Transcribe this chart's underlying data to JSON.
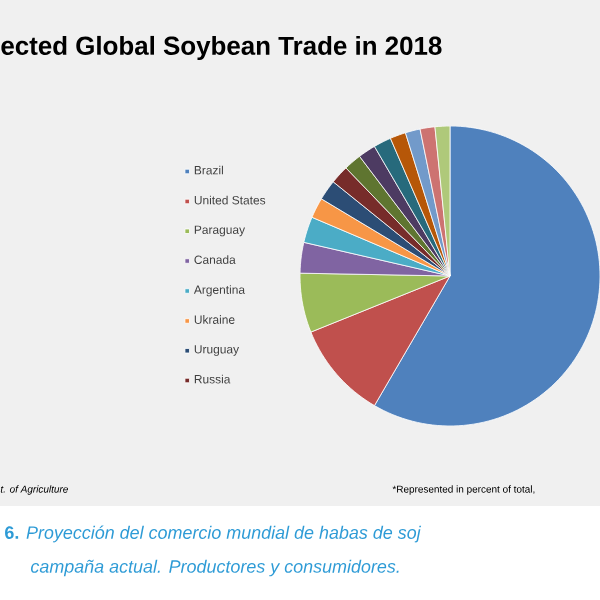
{
  "chart_data": {
    "type": "pie",
    "title": "ected Global Soybean Trade in 2018",
    "categories": [
      "Brazil",
      "United States",
      "Paraguay",
      "Canada",
      "Argentina",
      "Ukraine",
      "Uruguay",
      "Russia",
      null,
      null,
      null,
      null,
      null,
      null,
      null
    ],
    "values": [
      58.4,
      10.5,
      6.4,
      3.3,
      2.8,
      2.2,
      2.2,
      2.0,
      1.9,
      1.9,
      1.9,
      1.7,
      1.6,
      1.6,
      1.6
    ],
    "colors": [
      "#4f81bd",
      "#c0504d",
      "#9bbb59",
      "#8064a2",
      "#4bacc6",
      "#f79646",
      "#2c4d75",
      "#772c2a",
      "#5f7530",
      "#4d3b62",
      "#276a7c",
      "#b65708",
      "#729aca",
      "#cd7371",
      "#afc97a"
    ],
    "legend": "left",
    "annotations": [
      "t. of Agriculture",
      "*Represented in percent of total,",
      "**6.** *Proyección del comercio mundial de habas de soj*",
      "*campaña actual. Productores y consumidores.*"
    ]
  }
}
